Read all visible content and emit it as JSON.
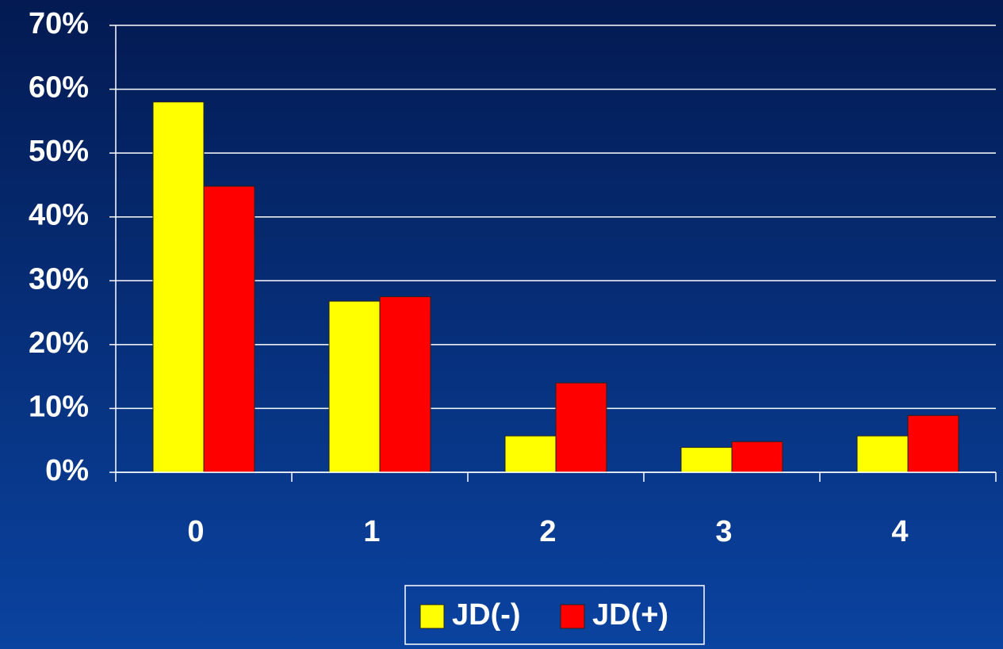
{
  "chart_data": {
    "type": "bar",
    "categories": [
      "0",
      "1",
      "2",
      "3",
      "4"
    ],
    "series": [
      {
        "name": "JD(-)",
        "color": "#ffff00",
        "values": [
          58,
          26.8,
          5.7,
          3.9,
          5.7
        ]
      },
      {
        "name": "JD(+)",
        "color": "#ff0000",
        "values": [
          44.8,
          27.5,
          14,
          4.8,
          8.9
        ]
      }
    ],
    "ylim": [
      0,
      70
    ],
    "yticks": [
      {
        "value": 0,
        "label": "0%"
      },
      {
        "value": 10,
        "label": "10%"
      },
      {
        "value": 20,
        "label": "20%"
      },
      {
        "value": 30,
        "label": "30%"
      },
      {
        "value": 40,
        "label": "40%"
      },
      {
        "value": 50,
        "label": "50%"
      },
      {
        "value": 60,
        "label": "60%"
      },
      {
        "value": 70,
        "label": "70%"
      }
    ],
    "grid": true,
    "legend": "bottom"
  }
}
